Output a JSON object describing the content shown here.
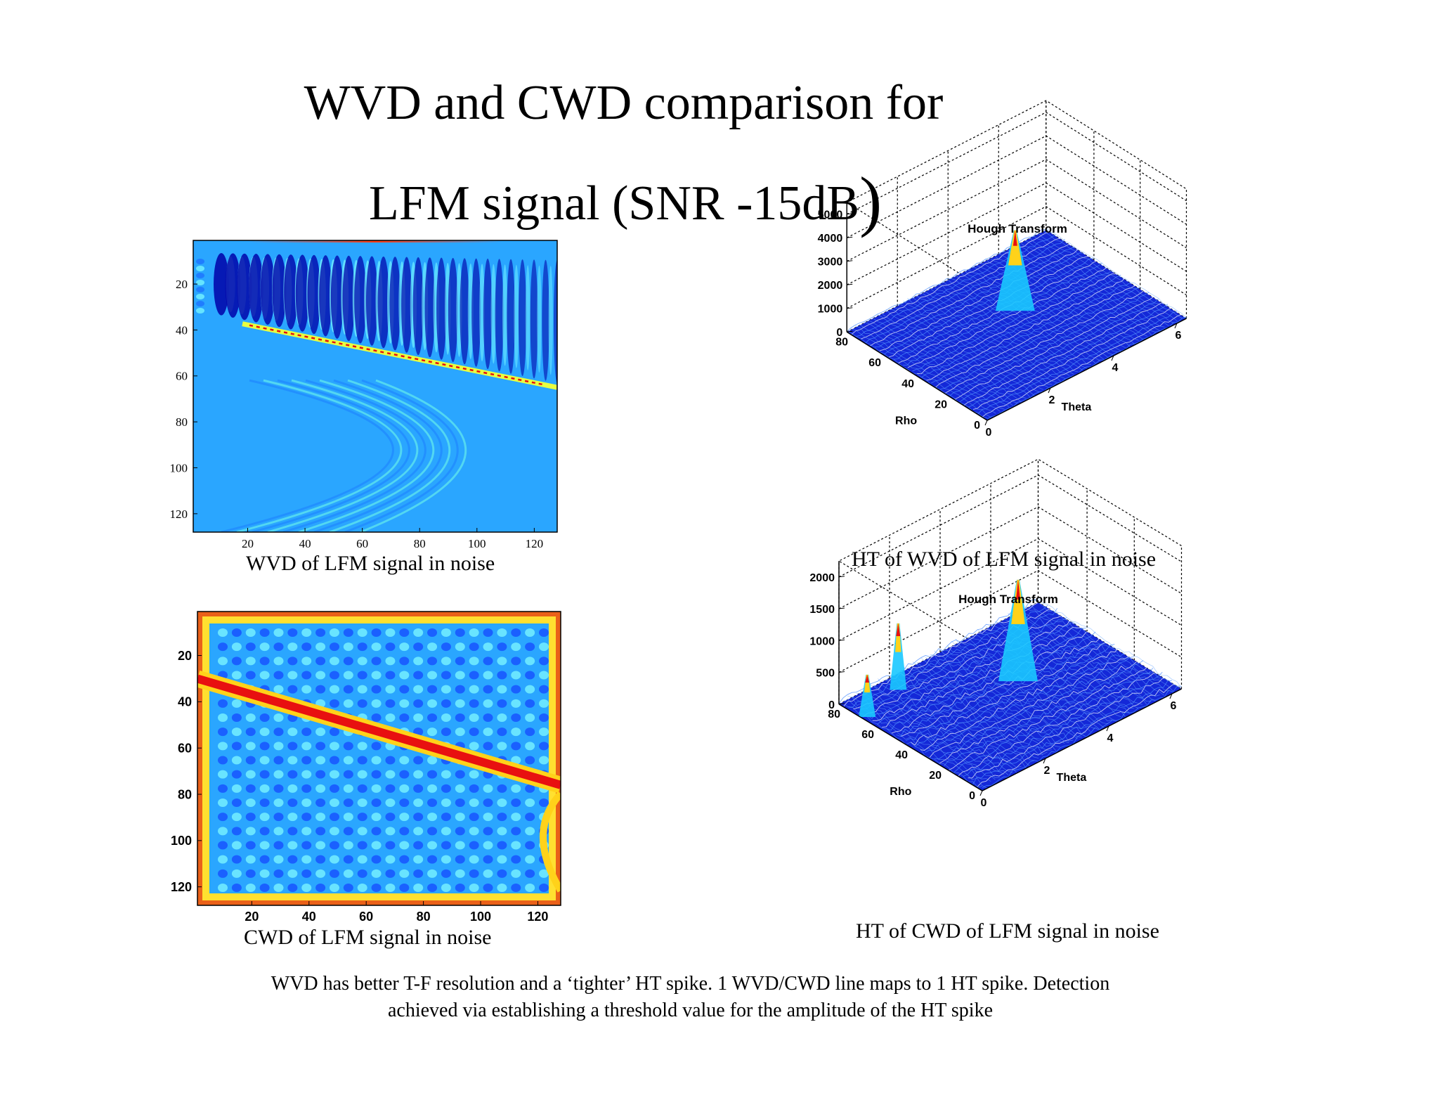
{
  "title": {
    "line1": "WVD and CWD comparison for",
    "line2": "LFM signal (SNR -15dB",
    "line2_close": ")"
  },
  "footer": {
    "line1": "WVD has better T-F resolution and a ‘tighter’ HT spike.  1 WVD/CWD line maps to 1 HT spike.  Detection",
    "line2": "achieved via establishing a threshold value for the amplitude of the HT spike"
  },
  "captions": {
    "wvd": "WVD of LFM signal in noise",
    "cwd": "CWD of LFM signal in noise",
    "ht_wvd": "HT of WVD of LFM signal in noise",
    "ht_cwd": "HT of CWD of LFM signal in noise"
  },
  "colors": {
    "background_field": "#2aa6ff",
    "ridge": "#ffd21a",
    "deep_blue": "#0000a8",
    "hot": "#e81010",
    "mesh": "#1530ff"
  },
  "chart_data": [
    {
      "id": "wvd",
      "type": "heatmap",
      "title": "",
      "colormap": "jet",
      "xticks": [
        20,
        40,
        60,
        80,
        100,
        120
      ],
      "yticks": [
        20,
        40,
        60,
        80,
        100,
        120
      ],
      "xlim": [
        1,
        128
      ],
      "ylim": [
        1,
        128
      ],
      "y_reversed": true,
      "ridge": {
        "x": [
          1,
          128
        ],
        "y": [
          33,
          65
        ]
      }
    },
    {
      "id": "cwd",
      "type": "heatmap",
      "title": "",
      "colormap": "jet",
      "xticks": [
        20,
        40,
        60,
        80,
        100,
        120
      ],
      "yticks": [
        20,
        40,
        60,
        80,
        100,
        120
      ],
      "xlim": [
        1,
        128
      ],
      "ylim": [
        1,
        128
      ],
      "y_reversed": true,
      "ridge": {
        "x": [
          1,
          128
        ],
        "y": [
          30,
          76
        ]
      }
    },
    {
      "id": "ht_wvd",
      "type": "surface",
      "title": "Hough Transform",
      "xlabel": "Theta",
      "ylabel": "Rho",
      "zticks": [
        0,
        1000,
        2000,
        3000,
        4000,
        5000
      ],
      "theta_ticks": [
        0,
        2,
        4,
        6
      ],
      "rho_ticks": [
        0,
        20,
        40,
        60,
        80
      ],
      "peaks": [
        {
          "theta": 3.6,
          "rho": 52,
          "z": 3300
        }
      ]
    },
    {
      "id": "ht_cwd",
      "type": "surface",
      "title": "Hough Transform",
      "xlabel": "Theta",
      "ylabel": "Rho",
      "zticks": [
        0,
        500,
        1000,
        1500,
        2000
      ],
      "theta_ticks": [
        0,
        2,
        4,
        6
      ],
      "rho_ticks": [
        0,
        20,
        40,
        60,
        80
      ],
      "peaks": [
        {
          "theta": 3.8,
          "rho": 50,
          "z": 1550
        },
        {
          "theta": 1.5,
          "rho": 78,
          "z": 1000
        },
        {
          "theta": 0.2,
          "rho": 72,
          "z": 620
        }
      ]
    }
  ]
}
